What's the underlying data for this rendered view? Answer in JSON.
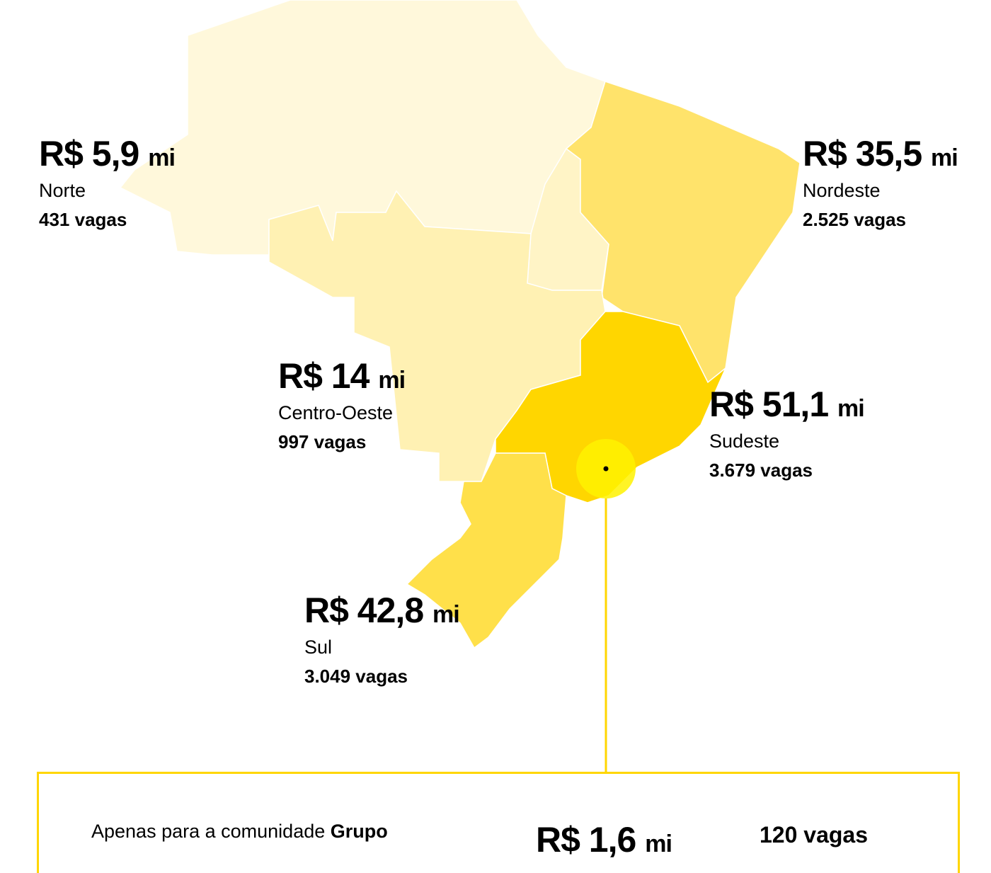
{
  "colors": {
    "norte": "#fff8db",
    "centro_oeste": "#fff1b3",
    "nordeste": "#ffe36b",
    "sudeste": "#ffd600",
    "sul": "#ffe04a",
    "highlight": "#fff200",
    "accent": "#ffd600"
  },
  "regions": [
    {
      "id": "norte",
      "amount": "R$ 5,9",
      "unit": "mi",
      "name": "Norte",
      "vagas": "431 vagas"
    },
    {
      "id": "nordeste",
      "amount": "R$ 35,5",
      "unit": "mi",
      "name": "Nordeste",
      "vagas": "2.525 vagas"
    },
    {
      "id": "centro_oeste",
      "amount": "R$ 14",
      "unit": "mi",
      "name": "Centro-Oeste",
      "vagas": "997 vagas"
    },
    {
      "id": "sudeste",
      "amount": "R$ 51,1",
      "unit": "mi",
      "name": "Sudeste",
      "vagas": "3.679 vagas"
    },
    {
      "id": "sul",
      "amount": "R$ 42,8",
      "unit": "mi",
      "name": "Sul",
      "vagas": "3.049 vagas"
    }
  ],
  "callout": {
    "text": "Apenas para a comunidade",
    "bold": "Grupo",
    "amount": "R$ 1,6",
    "unit": "mi",
    "vagas": "120 vagas"
  }
}
